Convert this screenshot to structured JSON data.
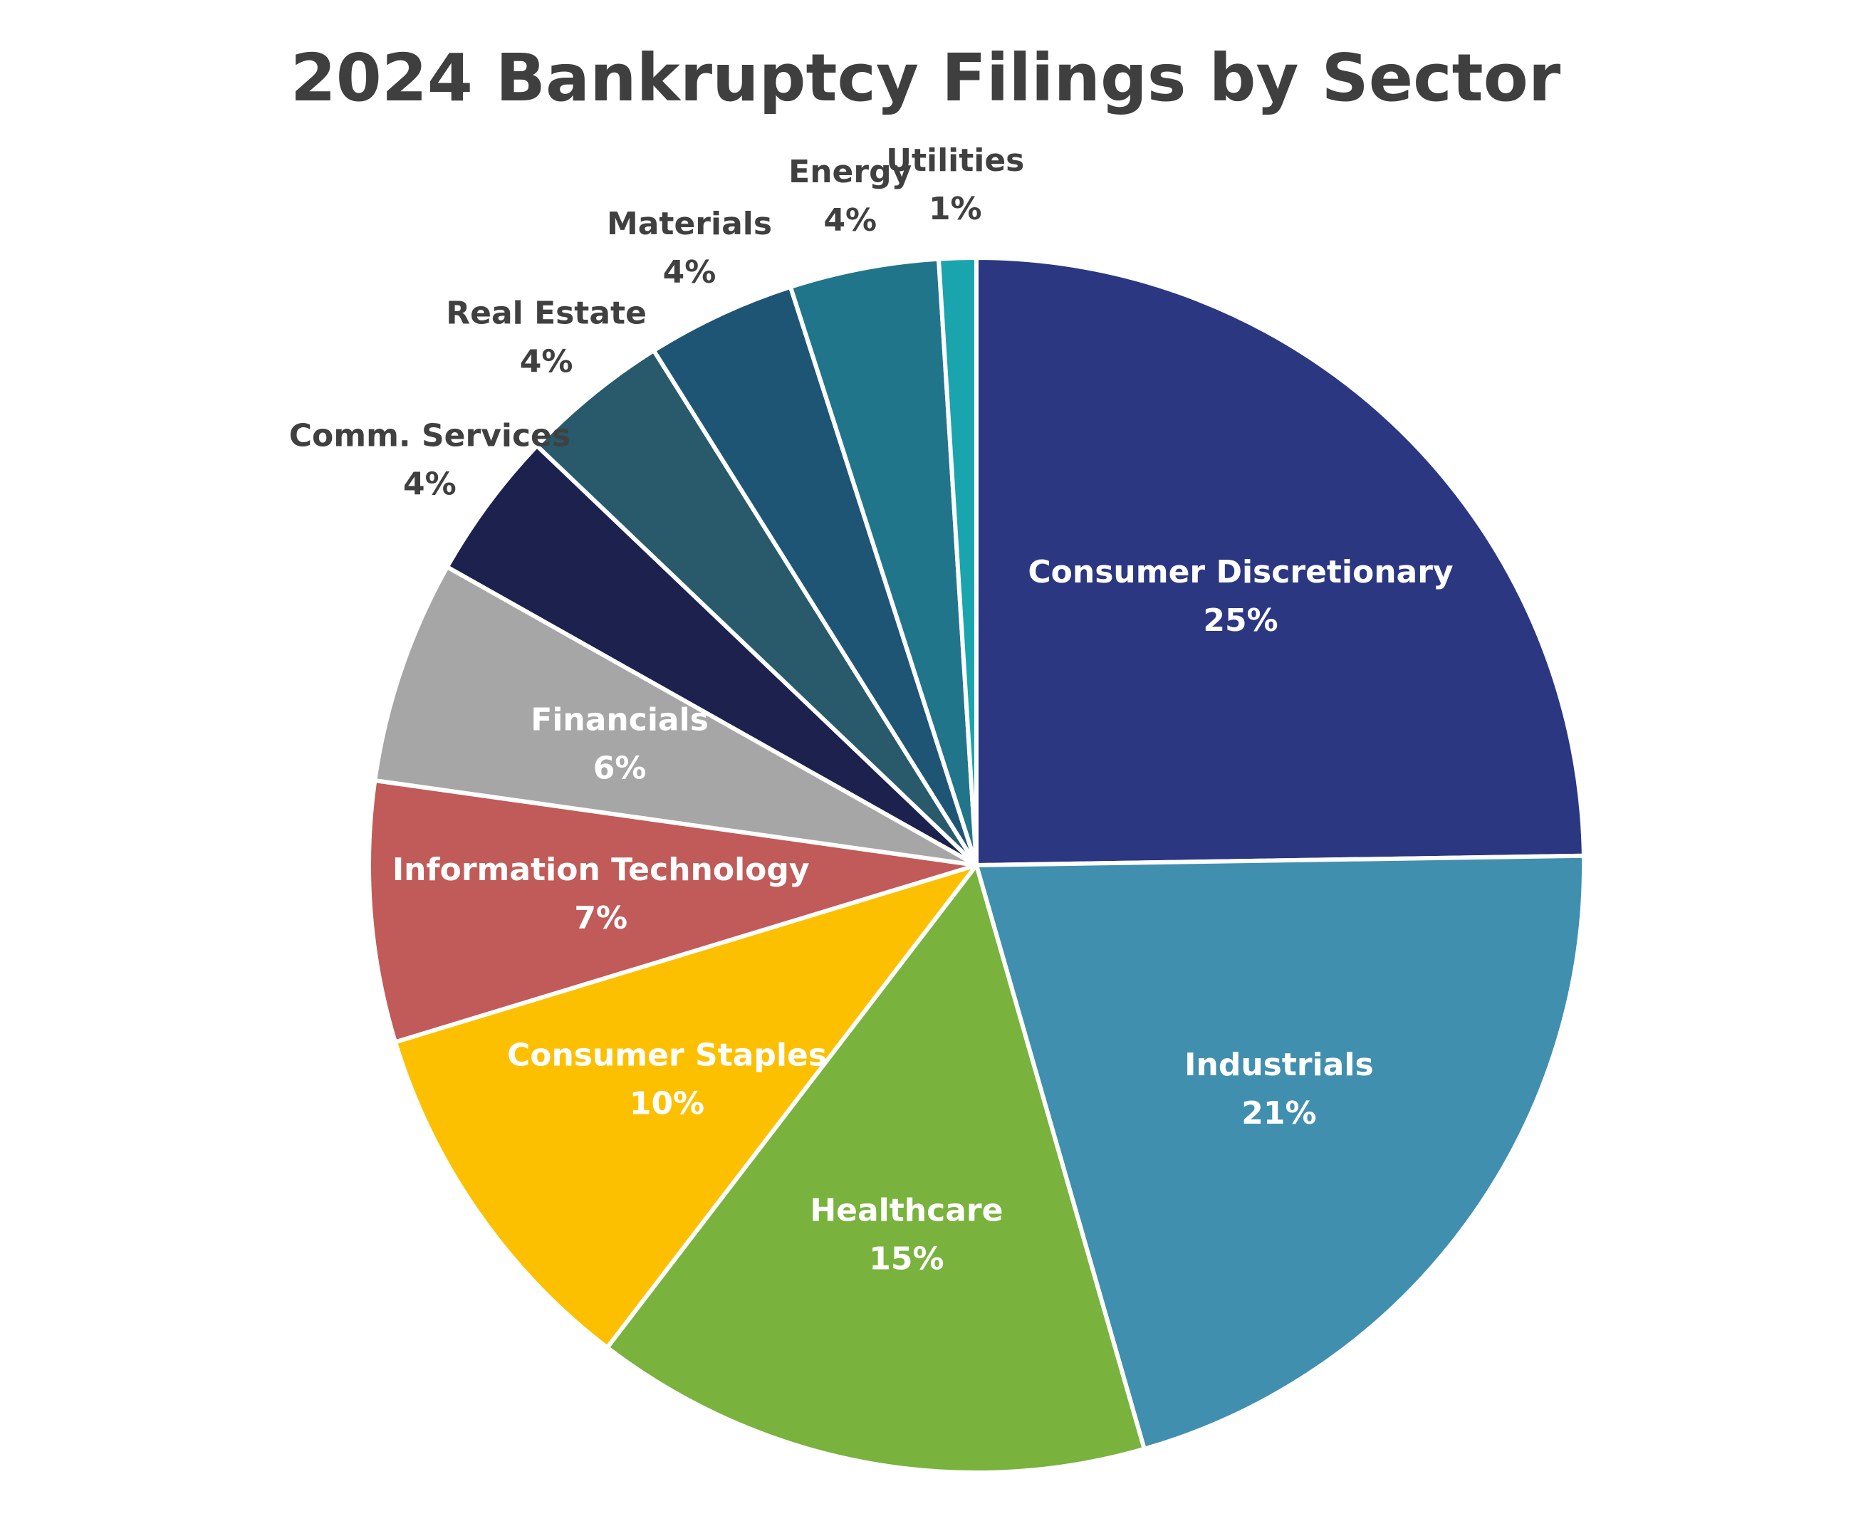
{
  "chart_data": {
    "type": "pie",
    "title": "2024 Bankruptcy Filings by Sector",
    "start_angle_deg": 0,
    "direction": "clockwise",
    "slices": [
      {
        "label": "Consumer Discretionary",
        "value": 25,
        "value_label": "25%",
        "color": "#2c3781",
        "label_color": "#ffffff",
        "label_placement": "inside"
      },
      {
        "label": "Industrials",
        "value": 21,
        "value_label": "21%",
        "color": "#418fae",
        "label_color": "#ffffff",
        "label_placement": "inside"
      },
      {
        "label": "Healthcare",
        "value": 15,
        "value_label": "15%",
        "color": "#79b23d",
        "label_color": "#ffffff",
        "label_placement": "inside"
      },
      {
        "label": "Consumer Staples",
        "value": 10,
        "value_label": "10%",
        "color": "#fdc000",
        "label_color": "#ffffff",
        "label_placement": "inside"
      },
      {
        "label": "Information Technology",
        "value": 7,
        "value_label": "7%",
        "color": "#c05b59",
        "label_color": "#ffffff",
        "label_placement": "inside"
      },
      {
        "label": "Financials",
        "value": 6,
        "value_label": "6%",
        "color": "#a6a6a6",
        "label_color": "#ffffff",
        "label_placement": "inside"
      },
      {
        "label": "Comm. Services",
        "value": 4,
        "value_label": "4%",
        "color": "#1c214d",
        "label_color": "#404040",
        "label_placement": "outside"
      },
      {
        "label": "Real Estate",
        "value": 4,
        "value_label": "4%",
        "color": "#285a6b",
        "label_color": "#404040",
        "label_placement": "outside"
      },
      {
        "label": "Materials",
        "value": 4,
        "value_label": "4%",
        "color": "#1f5574",
        "label_color": "#404040",
        "label_placement": "outside"
      },
      {
        "label": "Energy",
        "value": 4,
        "value_label": "4%",
        "color": "#21758a",
        "label_color": "#404040",
        "label_placement": "outside"
      },
      {
        "label": "Utilities",
        "value": 1,
        "value_label": "1%",
        "color": "#1aa4ad",
        "label_color": "#404040",
        "label_placement": "outside"
      }
    ]
  }
}
